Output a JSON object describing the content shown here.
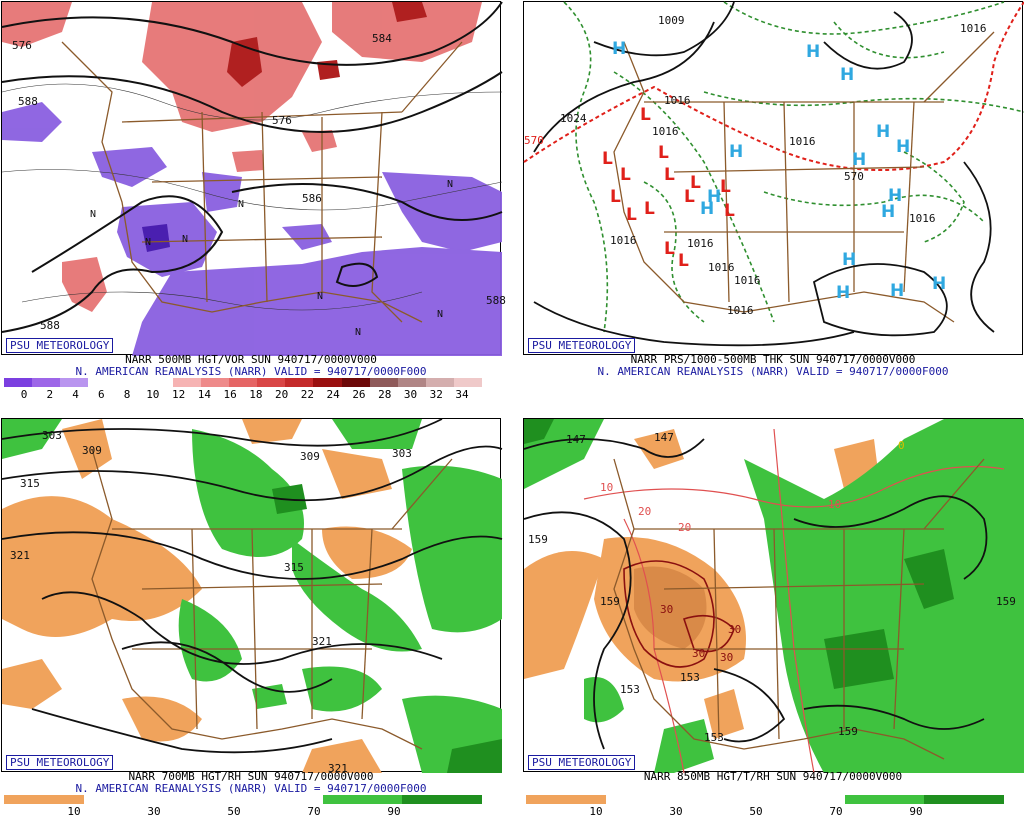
{
  "panels": [
    {
      "credit": "PSU METEOROLOGY",
      "caption_line1": "NARR 500MB HGT/VOR SUN 940717/0000V000",
      "caption_line2": "N. AMERICAN REANALYSIS (NARR) VALID = 940717/0000F000",
      "contour_labels": [
        "576",
        "588",
        "588",
        "588",
        "586",
        "576",
        "584"
      ],
      "colorbar": {
        "ticks": [
          "0",
          "2",
          "4",
          "6",
          "8",
          "10",
          "12",
          "14",
          "16",
          "18",
          "20",
          "22",
          "24",
          "26",
          "28",
          "30",
          "32",
          "34"
        ],
        "colors": [
          "#7b3fe0",
          "#9d66e8",
          "#b995ef",
          "#ffffff",
          "#ffffff",
          "#ffffff",
          "#f6b3b3",
          "#ee8a8a",
          "#e56565",
          "#d94646",
          "#c42a2a",
          "#9a1010",
          "#6d0808",
          "#8f5a5a",
          "#b08585",
          "#d4aeae",
          "#efc9c9"
        ]
      }
    },
    {
      "credit": "PSU METEOROLOGY",
      "caption_line1": "NARR PRS/1000-500MB THK SUN 940717/0000V000",
      "caption_line2": "N. AMERICAN REANALYSIS (NARR) VALID = 940717/0000F000",
      "contour_labels": [
        "1009",
        "1024",
        "1016",
        "1016",
        "1016",
        "1016",
        "1016",
        "1016",
        "1016",
        "1016",
        "1016",
        "570",
        "570",
        "1016"
      ]
    },
    {
      "credit": "PSU METEOROLOGY",
      "caption_line1": "NARR 700MB HGT/RH SUN 940717/0000V000",
      "caption_line2": "N. AMERICAN REANALYSIS (NARR) VALID = 940717/0000F000",
      "contour_labels": [
        "303",
        "309",
        "315",
        "309",
        "303",
        "321",
        "315",
        "321",
        "321"
      ],
      "colorbar": {
        "ticks": [
          "10",
          "30",
          "50",
          "70",
          "90"
        ],
        "colors": [
          "#f0a35c",
          "#f0a35c",
          "#ffffff",
          "#ffffff",
          "#ffffff",
          "#ffffff",
          "#ffffff",
          "#ffffff",
          "#3fc23f",
          "#3fc23f",
          "#1f8f1f",
          "#1f8f1f"
        ]
      }
    },
    {
      "credit": "PSU METEOROLOGY",
      "caption_line1": "NARR 850MB HGT/T/RH SUN 940717/0000V000",
      "caption_line2": "",
      "contour_labels": [
        "147",
        "147",
        "10",
        "20",
        "20",
        "10",
        "159",
        "159",
        "30",
        "30",
        "30",
        "30",
        "153",
        "153",
        "159",
        "159",
        "153",
        "0"
      ],
      "colorbar": {
        "ticks": [
          "10",
          "30",
          "50",
          "70",
          "90"
        ],
        "colors": [
          "#f0a35c",
          "#f0a35c",
          "#ffffff",
          "#ffffff",
          "#ffffff",
          "#ffffff",
          "#ffffff",
          "#ffffff",
          "#3fc23f",
          "#3fc23f",
          "#1f8f1f",
          "#1f8f1f"
        ]
      }
    }
  ],
  "highs_lows": {
    "H": "H",
    "L": "L",
    "N": "N"
  },
  "colors": {
    "border": "#8b5a2b",
    "contour": "#111111",
    "vor_low": "#8a5fe0",
    "vor_high": "#e26a6a",
    "rh_dry": "#f0a35c",
    "rh_moist": "#3fc23f",
    "high_symbol": "#2fa8e0",
    "low_symbol": "#e0201a",
    "thickness_dash": "#2f8f2f",
    "thickness_570": "#e0201a"
  }
}
